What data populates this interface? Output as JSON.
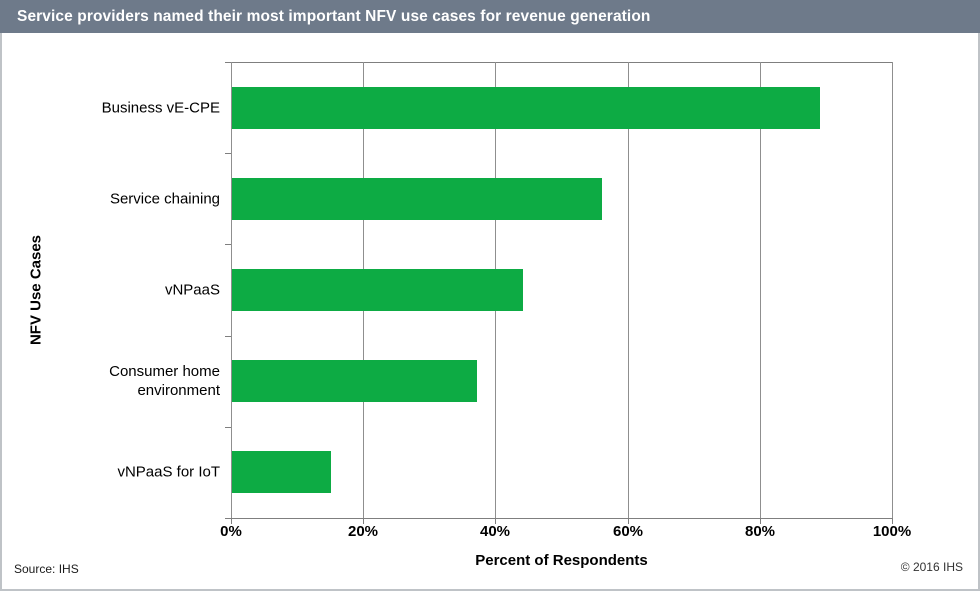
{
  "title_bar": {
    "text": "Service providers named their most important NFV use cases for revenue generation",
    "bg": "#6e7a8a",
    "text_color": "#ffffff"
  },
  "chart_data": {
    "type": "bar",
    "orientation": "horizontal",
    "title": "Service providers named their most important NFV use cases for revenue generation",
    "categories": [
      "Business vE-CPE",
      "Service chaining",
      "vNPaaS",
      "Consumer home environment",
      "vNPaaS for IoT"
    ],
    "values": [
      89,
      56,
      44,
      37,
      15
    ],
    "xlabel": "Percent of Respondents",
    "ylabel": "NFV Use Cases",
    "x_ticks": [
      "0%",
      "20%",
      "40%",
      "60%",
      "80%",
      "100%"
    ],
    "xlim": [
      0,
      100
    ],
    "grid": true,
    "legend": false,
    "bar_color": "#0dab44",
    "gridline_color": "#8f8f8f"
  },
  "footer": {
    "source": "Source: IHS",
    "copyright": "© 2016 IHS"
  }
}
